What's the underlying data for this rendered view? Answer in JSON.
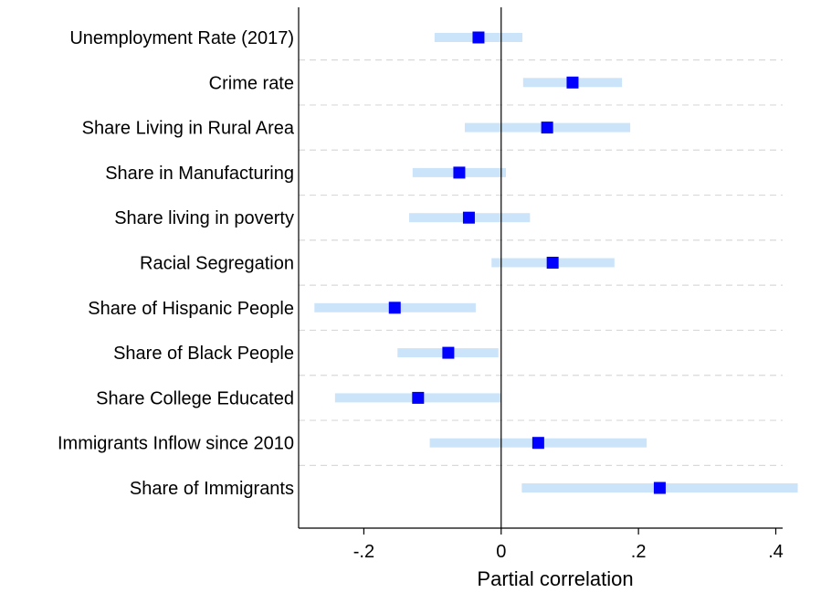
{
  "chart_data": {
    "type": "scatter",
    "subtype": "coefficient-plot-with-confidence-intervals",
    "title": "",
    "xlabel": "Partial correlation",
    "ylabel": "",
    "xlim": [
      -0.295,
      0.41
    ],
    "xticks": [
      -0.2,
      0,
      0.2,
      0.4
    ],
    "xtick_labels": [
      "-.2",
      "0",
      ".2",
      ".4"
    ],
    "reference_line_x": 0,
    "grid": "horizontal dashed separators",
    "legend": "none",
    "colors": {
      "point": "#0000ff",
      "ci": "#cce4fa",
      "ref_line": "#000000",
      "grid": "#d9d9d9"
    },
    "rows": [
      {
        "label": "Unemployment Rate (2017)",
        "estimate": -0.033,
        "ci_low": -0.097,
        "ci_high": 0.031
      },
      {
        "label": "Crime rate",
        "estimate": 0.104,
        "ci_low": 0.032,
        "ci_high": 0.176
      },
      {
        "label": "Share Living in Rural Area",
        "estimate": 0.067,
        "ci_low": -0.053,
        "ci_high": 0.188
      },
      {
        "label": "Share in Manufacturing",
        "estimate": -0.061,
        "ci_low": -0.129,
        "ci_high": 0.007
      },
      {
        "label": "Share living in poverty",
        "estimate": -0.047,
        "ci_low": -0.134,
        "ci_high": 0.042
      },
      {
        "label": "Racial Segregation",
        "estimate": 0.075,
        "ci_low": -0.014,
        "ci_high": 0.165
      },
      {
        "label": "Share of Hispanic People",
        "estimate": -0.155,
        "ci_low": -0.272,
        "ci_high": -0.037
      },
      {
        "label": "Share of Black People",
        "estimate": -0.077,
        "ci_low": -0.151,
        "ci_high": -0.004
      },
      {
        "label": "Share College Educated",
        "estimate": -0.121,
        "ci_low": -0.242,
        "ci_high": 0.0
      },
      {
        "label": "Immigrants Inflow since 2010",
        "estimate": 0.054,
        "ci_low": -0.104,
        "ci_high": 0.212
      },
      {
        "label": "Share of Immigrants",
        "estimate": 0.231,
        "ci_low": 0.03,
        "ci_high": 0.432
      }
    ]
  }
}
